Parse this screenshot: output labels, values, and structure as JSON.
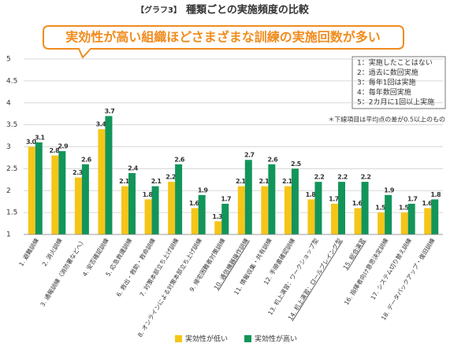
{
  "chart_data": {
    "type": "bar",
    "title_tag": "【グラフ3】",
    "title": "種類ごとの実施頻度の比較",
    "subtitle": "実効性が高い組織ほどさまざまな訓練の実施回数が多い",
    "scale_notes": [
      "1：実施したことはない",
      "2：過去に数回実施",
      "3：毎年1回は実施",
      "4：毎年数回実施",
      "5：2カ月に1回以上実施"
    ],
    "note": "＊下線項目は平均点の差が0.5以上のもの",
    "categories": [
      "1. 避難訓練",
      "2. 消火訓練",
      "3. 通報訓練（消防署などへ）",
      "4. 安否確認訓練",
      "5. 応急救護訓練",
      "6. 救出・救助・救命訓練",
      "7. 対策本部立ち上げ訓練",
      "8. オンラインによる対策本部立ち上げ訓練",
      "9. 帰宅困難者対策訓練",
      "10. 通信機器操作訓練",
      "11. 情報収集・共有訓練",
      "12. 手順書確認訓練",
      "13. 机上演習：ワークショップ型",
      "14. 机上演習：ロールプレイング型",
      "15. 総合演習",
      "16. 指揮者向け意思決定訓練",
      "17. システム切り替え訓練",
      "18. データバックアップ・復旧訓練"
    ],
    "underlined": [
      false,
      false,
      false,
      false,
      false,
      false,
      false,
      false,
      false,
      true,
      false,
      false,
      false,
      true,
      true,
      false,
      false,
      false
    ],
    "series": [
      {
        "name": "実効性が低い",
        "color": "#f5c518",
        "values": [
          3.0,
          2.8,
          2.3,
          3.4,
          2.1,
          1.8,
          2.2,
          1.6,
          1.3,
          2.1,
          2.1,
          2.1,
          1.8,
          1.7,
          1.6,
          1.5,
          1.5,
          1.6
        ],
        "value_labels": [
          "3.0",
          "2.8",
          "2.3",
          "3.4",
          "2.1",
          "1.8",
          "2.2",
          "1.6",
          "1.3",
          "2.1",
          "2.1",
          "2.1",
          "1.8",
          "1.7",
          "1.6",
          "1.5",
          "1.5",
          "1.6"
        ]
      },
      {
        "name": "実効性が高い",
        "color": "#12955a",
        "values": [
          3.1,
          2.9,
          2.6,
          3.7,
          2.4,
          2.1,
          2.6,
          1.9,
          1.7,
          2.7,
          2.6,
          2.5,
          2.2,
          2.2,
          2.2,
          1.9,
          1.7,
          1.8
        ],
        "value_labels": [
          "3.1",
          "2.9",
          "2.6",
          "3.7",
          "2.4",
          "2.1",
          "2.6",
          "1.9",
          "1.7",
          "2.7",
          "2.6",
          "2.5",
          "2.2",
          "2.2",
          "2.2",
          "1.9",
          "1.7",
          "1.8"
        ]
      }
    ],
    "ylim": [
      1,
      5
    ],
    "yticks": [
      1,
      1.5,
      2,
      2.5,
      3,
      3.5,
      4,
      4.5,
      5
    ],
    "grid": true,
    "underline_color": "#f08c1e"
  }
}
